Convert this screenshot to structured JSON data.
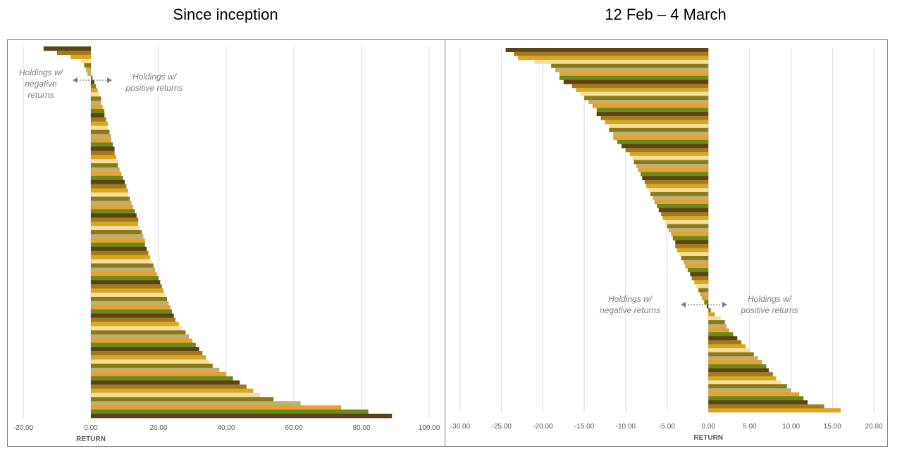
{
  "chart_data": [
    {
      "type": "bar",
      "orientation": "horizontal",
      "title": "Since inception",
      "xlabel": "RETURN",
      "xlim": [
        -20,
        100
      ],
      "tick_values": [
        -20,
        0,
        20,
        40,
        60,
        80,
        100
      ],
      "tick_labels": [
        "-20.00",
        "0.00",
        "20.00",
        "40.00",
        "60.00",
        "80.00",
        "100.00"
      ],
      "grid": true,
      "sorted": "ascending from top",
      "values": [
        -14,
        -10,
        -6,
        -3,
        -2,
        -1.5,
        -1,
        0.5,
        1,
        1.5,
        2,
        2.5,
        3,
        3,
        3.5,
        4,
        4,
        4.5,
        5,
        5,
        5.5,
        6,
        6,
        6.5,
        7,
        7,
        7.5,
        8,
        8,
        8.5,
        9,
        9.5,
        10,
        10.5,
        11,
        11,
        11.5,
        12,
        12.5,
        13,
        13.5,
        14,
        14,
        14.5,
        15,
        15.5,
        16,
        16,
        16.5,
        17,
        17.5,
        18,
        18.5,
        19,
        19.5,
        20,
        20.5,
        21,
        21.5,
        22,
        22.5,
        23,
        23.5,
        24,
        24.5,
        25,
        26,
        27,
        28,
        29,
        30,
        31,
        32,
        33,
        34,
        35,
        36,
        38,
        40,
        42,
        44,
        46,
        48,
        50,
        54,
        62,
        74,
        82,
        89
      ],
      "annotations": [
        {
          "text_lines": [
            "Holdings w/",
            "negative",
            "returns"
          ],
          "side": "negative"
        },
        {
          "text_lines": [
            "Holdings w/",
            "positive returns"
          ],
          "side": "positive"
        }
      ]
    },
    {
      "type": "bar",
      "orientation": "horizontal",
      "title": "12 Feb – 4 March",
      "xlabel": "RETURN",
      "xlim": [
        -30,
        20
      ],
      "tick_values": [
        -30,
        -25,
        -20,
        -15,
        -10,
        -5,
        0,
        5,
        10,
        15,
        20
      ],
      "tick_labels": [
        "-30.00",
        "-25.00",
        "-20.00",
        "-15.00",
        "-10.00",
        "-5.00",
        "0.00",
        "5.00",
        "10.00",
        "15.00",
        "20.00"
      ],
      "grid": true,
      "sorted": "ascending from top",
      "values": [
        -24.5,
        -23.5,
        -23,
        -21,
        -19,
        -18.5,
        -18,
        -18,
        -17.5,
        -16.5,
        -16,
        -15.5,
        -15,
        -14.5,
        -14,
        -13.5,
        -13.5,
        -13,
        -12.5,
        -12,
        -12,
        -11.5,
        -11.5,
        -11,
        -10.5,
        -10,
        -9.5,
        -9.2,
        -9,
        -8.7,
        -8.5,
        -8.2,
        -8,
        -7.7,
        -7.5,
        -7.2,
        -7,
        -6.7,
        -6.5,
        -6.2,
        -6,
        -5.7,
        -5.5,
        -5.2,
        -5,
        -4.8,
        -4.5,
        -4.3,
        -4,
        -4,
        -3.8,
        -3.5,
        -3.3,
        -3,
        -2.8,
        -2.5,
        -2.2,
        -2,
        -1.7,
        -1.5,
        -1.2,
        -1,
        -0.8,
        -0.5,
        -0.2,
        0.3,
        0.8,
        1.5,
        2,
        2.2,
        2.5,
        3,
        3.5,
        4,
        4.5,
        5,
        5.5,
        6,
        6.5,
        7,
        7.3,
        7.8,
        8.2,
        8.8,
        9.5,
        10,
        11,
        11.5,
        12,
        14,
        16
      ],
      "annotations": [
        {
          "text_lines": [
            "Holdings w/",
            "negative returns"
          ],
          "side": "negative"
        },
        {
          "text_lines": [
            "Holdings w/",
            "positive returns"
          ],
          "side": "positive"
        }
      ]
    }
  ],
  "palette": [
    "#5c4313",
    "#a07a20",
    "#d9a81e",
    "#f5dfa0",
    "#8a7a1a",
    "#c0b070",
    "#e8a030",
    "#6a8a20"
  ],
  "grid_color": "#d9d9d9",
  "tick_color": "#595959",
  "annotation_color": "#7f7f7f"
}
